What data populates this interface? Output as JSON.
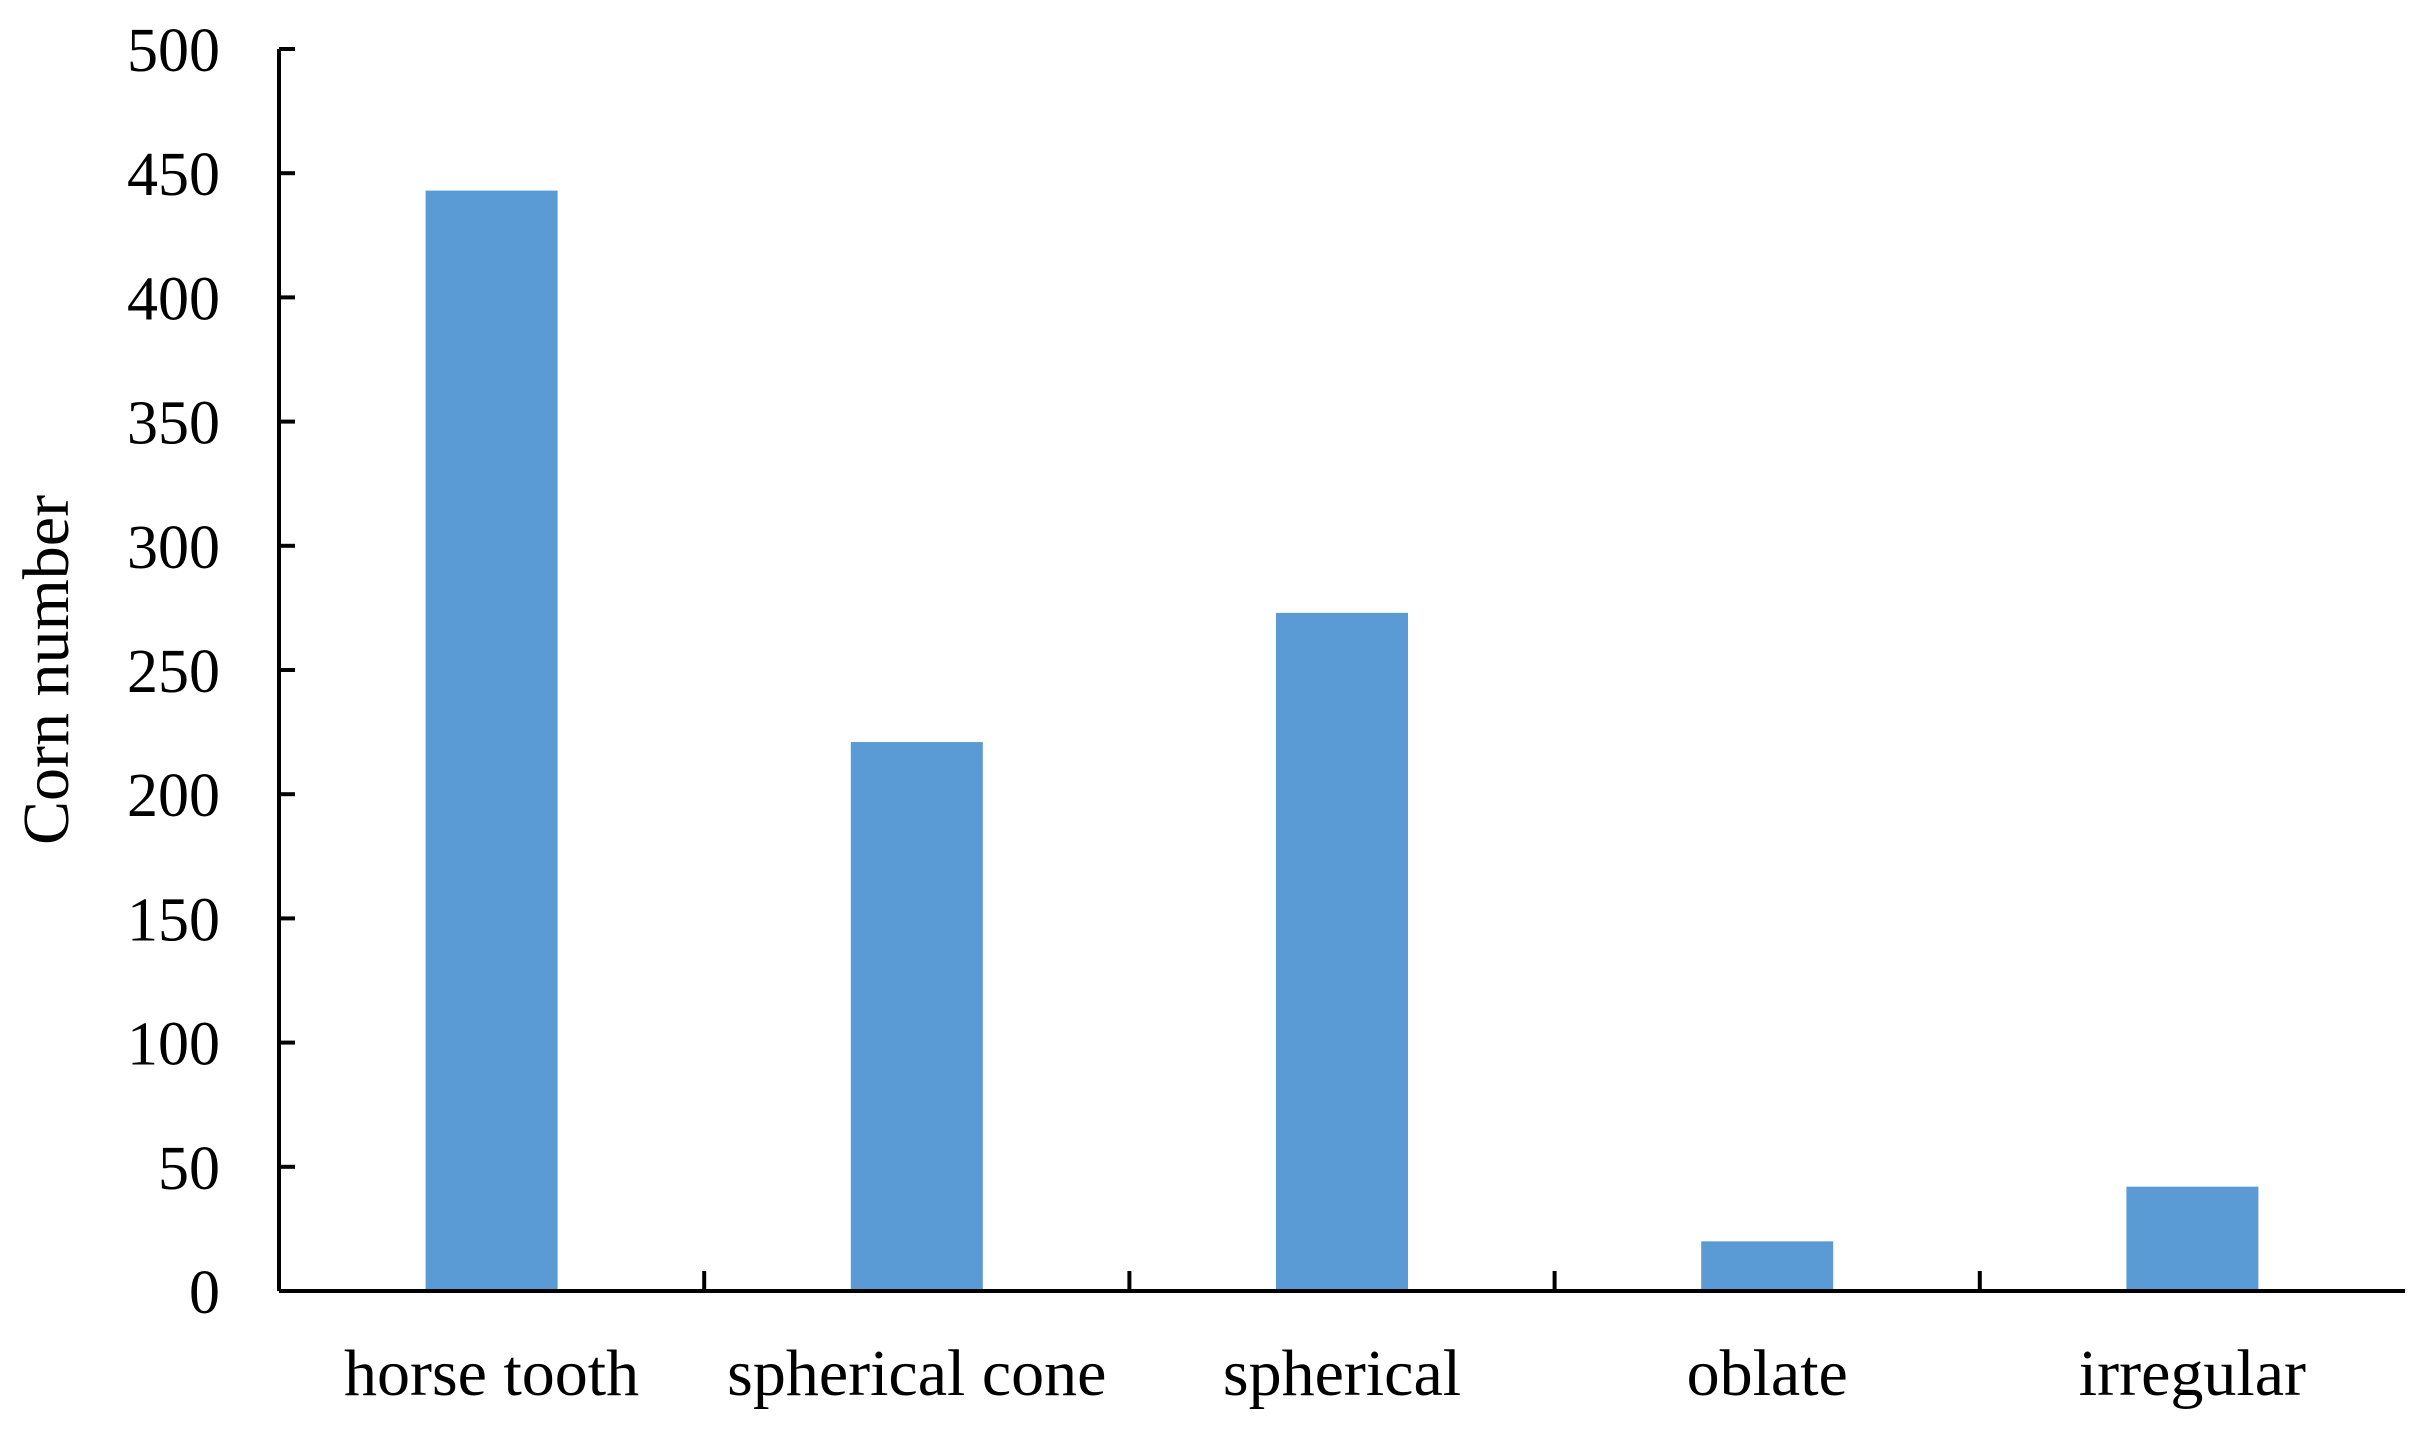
{
  "chart_data": {
    "type": "bar",
    "title": "",
    "xlabel": "",
    "ylabel": "Corn number",
    "categories": [
      "horse tooth",
      "spherical cone",
      "spherical",
      "oblate",
      "irregular"
    ],
    "values": [
      443,
      221,
      273,
      20,
      42
    ],
    "ylim": [
      0,
      500
    ],
    "yticks": [
      0,
      50,
      100,
      150,
      200,
      250,
      300,
      350,
      400,
      450,
      500
    ],
    "ytick_labels": [
      "0",
      "50",
      "100",
      "150",
      "200",
      "250",
      "300",
      "350",
      "400",
      "450",
      "500"
    ],
    "bar_color": "#5B9BD5",
    "axis_color": "#000000",
    "grid": false,
    "legend": "none"
  }
}
